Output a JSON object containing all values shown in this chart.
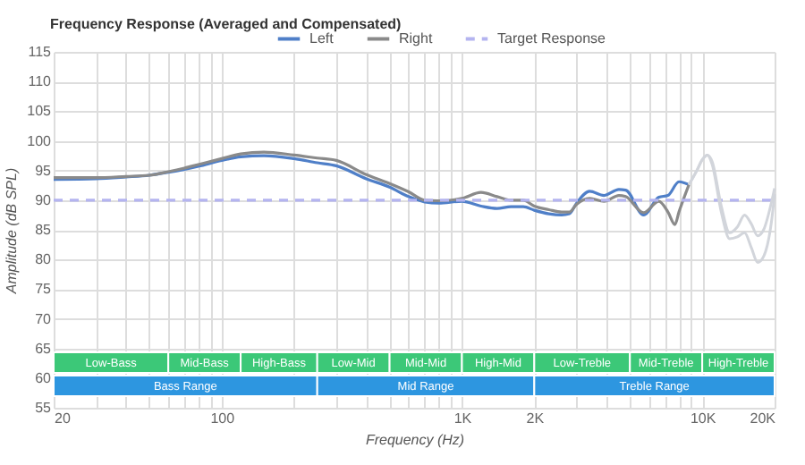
{
  "chart_data": {
    "type": "line",
    "title": "Frequency Response (Averaged and Compensated)",
    "xlabel": "Frequency (Hz)",
    "ylabel": "Amplitude (dB SPL)",
    "log": "x",
    "grid": true,
    "legend": "top",
    "xlim": [
      20,
      20000
    ],
    "ylim": [
      55,
      115
    ],
    "xticks": [
      20,
      {
        "value": 30,
        "label": null
      },
      {
        "value": 40,
        "label": null
      },
      {
        "value": 50,
        "label": null
      },
      {
        "value": 60,
        "label": null
      },
      {
        "value": 70,
        "label": null
      },
      {
        "value": 80,
        "label": null
      },
      {
        "value": 90,
        "label": null
      },
      100,
      {
        "value": 200,
        "label": null
      },
      {
        "value": 300,
        "label": null
      },
      {
        "value": 400,
        "label": null
      },
      {
        "value": 500,
        "label": null
      },
      {
        "value": 600,
        "label": null
      },
      {
        "value": 700,
        "label": null
      },
      {
        "value": 800,
        "label": null
      },
      {
        "value": 900,
        "label": null
      },
      {
        "value": 1000,
        "label": "1K"
      },
      {
        "value": 2000,
        "label": "2K"
      },
      {
        "value": 3000,
        "label": null
      },
      {
        "value": 4000,
        "label": null
      },
      {
        "value": 5000,
        "label": null
      },
      {
        "value": 6000,
        "label": null
      },
      {
        "value": 7000,
        "label": null
      },
      {
        "value": 8000,
        "label": null
      },
      {
        "value": 9000,
        "label": null
      },
      {
        "value": 10000,
        "label": "10K"
      },
      {
        "value": 20000,
        "label": "20K"
      }
    ],
    "yticks": [
      55,
      60,
      65,
      70,
      75,
      80,
      85,
      90,
      95,
      100,
      105,
      110,
      115
    ],
    "series": [
      {
        "name": "Left",
        "color": "#4f7fc8",
        "x": [
          20,
          30,
          40,
          50,
          60,
          70,
          80,
          100,
          120,
          150,
          200,
          250,
          300,
          400,
          500,
          600,
          700,
          800,
          1000,
          1200,
          1400,
          1600,
          1800,
          2000,
          2300,
          2600,
          2800,
          3000,
          3400,
          3900,
          4500,
          4800,
          5700,
          6600,
          7200,
          8000,
          8800
        ],
        "values": [
          93.5,
          93.6,
          93.9,
          94.2,
          94.7,
          95.2,
          95.7,
          96.7,
          97.3,
          97.5,
          97.0,
          96.3,
          95.8,
          93.6,
          92.2,
          90.6,
          89.7,
          89.5,
          89.8,
          89.0,
          88.6,
          88.9,
          88.9,
          88.3,
          87.7,
          87.5,
          87.7,
          89.5,
          91.5,
          90.8,
          91.8,
          91.7,
          87.5,
          90.5,
          90.8,
          93.1,
          92.6
        ]
      },
      {
        "name": "Right",
        "color": "#8a8a8a",
        "x": [
          20,
          30,
          40,
          50,
          60,
          70,
          80,
          100,
          120,
          150,
          200,
          250,
          300,
          400,
          500,
          600,
          700,
          800,
          1000,
          1200,
          1400,
          1600,
          1800,
          2000,
          2300,
          2600,
          2800,
          3000,
          3400,
          3900,
          4500,
          4800,
          5700,
          6600,
          7200,
          7700,
          8000,
          8800
        ],
        "values": [
          93.8,
          93.8,
          94.0,
          94.2,
          94.8,
          95.4,
          96.0,
          97.0,
          97.8,
          98.1,
          97.6,
          97.1,
          96.7,
          94.3,
          92.8,
          91.4,
          90.0,
          89.9,
          90.3,
          91.3,
          90.6,
          90.0,
          90.0,
          89.0,
          88.4,
          88.0,
          88.0,
          89.3,
          90.3,
          89.8,
          90.8,
          90.6,
          87.9,
          89.8,
          88.0,
          85.9,
          88.0,
          92.6
        ]
      },
      {
        "color": "#d2d5db",
        "x": [
          8800,
          9500,
          10000,
          10500,
          11000,
          12000,
          13000,
          14000,
          15000,
          16000,
          17000,
          18000,
          19500,
          20000
        ],
        "values": [
          92.6,
          95,
          96.8,
          97.6,
          96.5,
          89,
          84.5,
          85.5,
          87.5,
          86,
          84,
          85,
          90,
          92
        ]
      },
      {
        "color": "#d2d5db",
        "x": [
          8800,
          9500,
          10000,
          10500,
          11000,
          12000,
          13000,
          14000,
          15000,
          16000,
          17000,
          18000,
          19500,
          20000
        ],
        "values": [
          92.6,
          95,
          96.8,
          97.6,
          96,
          88,
          83.5,
          83.8,
          84.5,
          82,
          79.5,
          80.5,
          87,
          91
        ]
      }
    ],
    "ref_lines": [
      {
        "axis": "y",
        "value": 90,
        "label": "Target Response",
        "color": "#b4b4f0",
        "line_style": "dashed"
      }
    ],
    "bands": [
      {
        "axis": "x",
        "from": 20,
        "to": 60,
        "label": "Low-Bass",
        "color": "#3cc878"
      },
      {
        "axis": "x",
        "from": 60,
        "to": 120,
        "label": "Mid-Bass",
        "color": "#3cc878"
      },
      {
        "axis": "x",
        "from": 120,
        "to": 250,
        "label": "High-Bass",
        "color": "#3cc878"
      },
      {
        "axis": "x",
        "from": 250,
        "to": 500,
        "label": "Low-Mid",
        "color": "#3cc878"
      },
      {
        "axis": "x",
        "from": 500,
        "to": 1000,
        "label": "Mid-Mid",
        "color": "#3cc878"
      },
      {
        "axis": "x",
        "from": 1000,
        "to": 2000,
        "label": "High-Mid",
        "color": "#3cc878"
      },
      {
        "axis": "x",
        "from": 2000,
        "to": 5000,
        "label": "Low-Treble",
        "color": "#3cc878"
      },
      {
        "axis": "x",
        "from": 5000,
        "to": 10000,
        "label": "Mid-Treble",
        "color": "#3cc878"
      },
      {
        "axis": "x",
        "from": 10000,
        "to": 20000,
        "label": "High-Treble",
        "color": "#3cc878"
      },
      {
        "axis": "x",
        "from": 20,
        "to": 250,
        "label": "Bass Range",
        "color": "#2d96e0"
      },
      {
        "axis": "x",
        "from": 250,
        "to": 2000,
        "label": "Mid Range",
        "color": "#2d96e0"
      },
      {
        "axis": "x",
        "from": 2000,
        "to": 20000,
        "label": "Treble Range",
        "color": "#2d96e0"
      }
    ]
  }
}
